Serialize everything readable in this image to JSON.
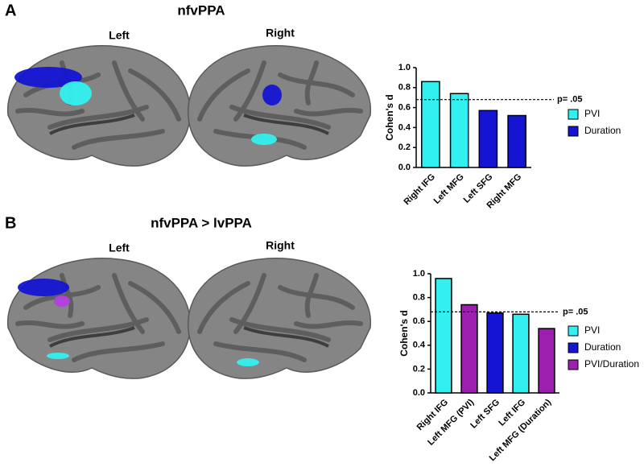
{
  "chart_data": [
    {
      "type": "bar",
      "panel_label": "A",
      "title": "nfvPPA",
      "hemisphere_labels": [
        "Left",
        "Right"
      ],
      "ylabel": "Cohen's d",
      "categories": [
        "Right IFG",
        "Left MFG",
        "Left SFG",
        "Right MFG"
      ],
      "series": [
        {
          "name": "PVI",
          "color": "#33f0f0",
          "values": [
            0.86,
            0.74,
            null,
            null
          ]
        },
        {
          "name": "Duration",
          "color": "#1414d2",
          "values": [
            null,
            null,
            0.57,
            0.52
          ]
        }
      ],
      "ylim": [
        0,
        1.0
      ],
      "yticks": [
        {
          "value": 0,
          "label": "0.0"
        },
        0.2,
        0.4,
        0.6,
        0.8,
        {
          "value": 1.0,
          "label": "1.0"
        }
      ],
      "threshold": {
        "value": 0.68,
        "label": "p= .05"
      }
    },
    {
      "type": "bar",
      "panel_label": "B",
      "title": "nfvPPA > lvPPA",
      "hemisphere_labels": [
        "Left",
        "Right"
      ],
      "ylabel": "Cohen's d",
      "categories": [
        "Right IFG",
        "Left MFG (PVI)",
        "Left SFG",
        "Left IFG",
        "Left MFG (Duration)"
      ],
      "series": [
        {
          "name": "PVI",
          "color": "#33f0f0",
          "values": [
            0.96,
            null,
            null,
            0.66,
            null
          ]
        },
        {
          "name": "Duration",
          "color": "#1414d2",
          "values": [
            null,
            null,
            0.67,
            null,
            null
          ]
        },
        {
          "name": "PVI/Duration",
          "color": "#9c1fb0",
          "values": [
            null,
            0.74,
            null,
            null,
            0.54
          ]
        }
      ],
      "ylim": [
        0,
        1.0
      ],
      "yticks": [
        {
          "value": 0,
          "label": "0.0"
        },
        0.2,
        0.4,
        0.6,
        0.8,
        {
          "value": 1.0,
          "label": "1.0"
        }
      ],
      "threshold": {
        "value": 0.68,
        "label": "p= .05"
      }
    }
  ]
}
